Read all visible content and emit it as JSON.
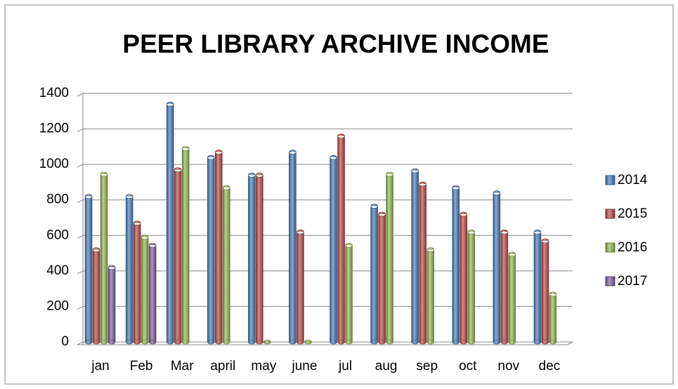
{
  "chart_data": {
    "type": "bar",
    "title": "PEER LIBRARY ARCHIVE INCOME",
    "categories": [
      "jan",
      "Feb",
      "Mar",
      "april",
      "may",
      "june",
      "jul",
      "aug",
      "sep",
      "oct",
      "nov",
      "dec"
    ],
    "series": [
      {
        "name": "2014",
        "color": "#4a7ebb",
        "values": [
          820,
          820,
          1340,
          1040,
          940,
          1070,
          1040,
          765,
          965,
          870,
          840,
          620
        ]
      },
      {
        "name": "2015",
        "color": "#be4b48",
        "values": [
          520,
          670,
          970,
          1070,
          940,
          620,
          1160,
          720,
          890,
          720,
          620,
          570
        ]
      },
      {
        "name": "2016",
        "color": "#98b954",
        "values": [
          945,
          590,
          1090,
          870,
          0,
          0,
          545,
          945,
          520,
          620,
          495,
          270
        ]
      },
      {
        "name": "2017",
        "color": "#7d60a0",
        "values": [
          420,
          545,
          null,
          null,
          null,
          null,
          null,
          null,
          null,
          null,
          null,
          null
        ]
      }
    ],
    "ylim": [
      0,
      1400
    ],
    "yticks": [
      0,
      200,
      400,
      600,
      800,
      1000,
      1200,
      1400
    ],
    "grid": true,
    "legend": "right"
  }
}
